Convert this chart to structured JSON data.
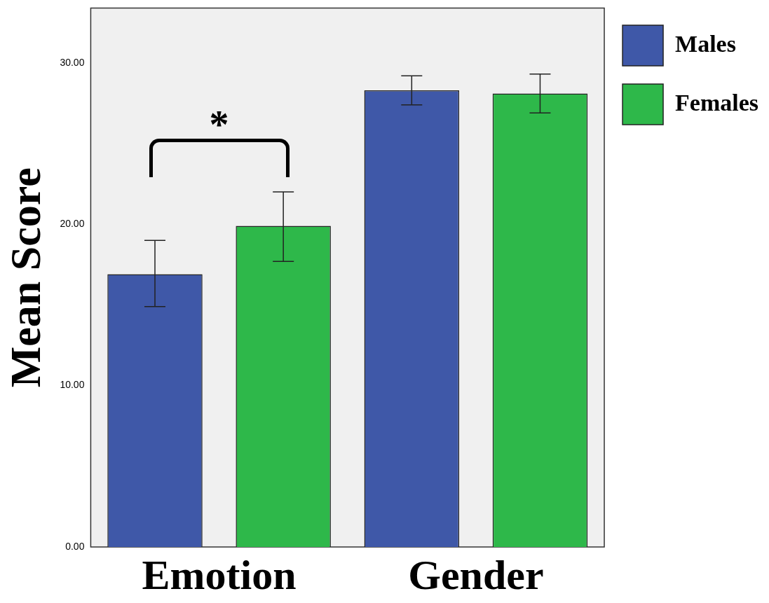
{
  "chart_data": {
    "type": "bar",
    "ylabel": "Mean Score",
    "categories": [
      "Emotion",
      "Gender"
    ],
    "series": [
      {
        "name": "Males",
        "color": "#3f58a8",
        "values": [
          16.9,
          28.3
        ],
        "errors": [
          [
            14.9,
            19.0
          ],
          [
            27.4,
            29.2
          ]
        ]
      },
      {
        "name": "Females",
        "color": "#2eb84a",
        "values": [
          19.9,
          28.1
        ],
        "errors": [
          [
            17.7,
            22.0
          ],
          [
            26.9,
            29.3
          ]
        ]
      }
    ],
    "ylim": [
      0,
      33.4
    ],
    "yticks": [
      {
        "value": 0,
        "label": "0.00"
      },
      {
        "value": 10,
        "label": "10.00"
      },
      {
        "value": 20,
        "label": "20.00"
      },
      {
        "value": 30,
        "label": "30.00"
      }
    ],
    "annotations": [
      "*"
    ],
    "grid": false,
    "legend": "right"
  }
}
